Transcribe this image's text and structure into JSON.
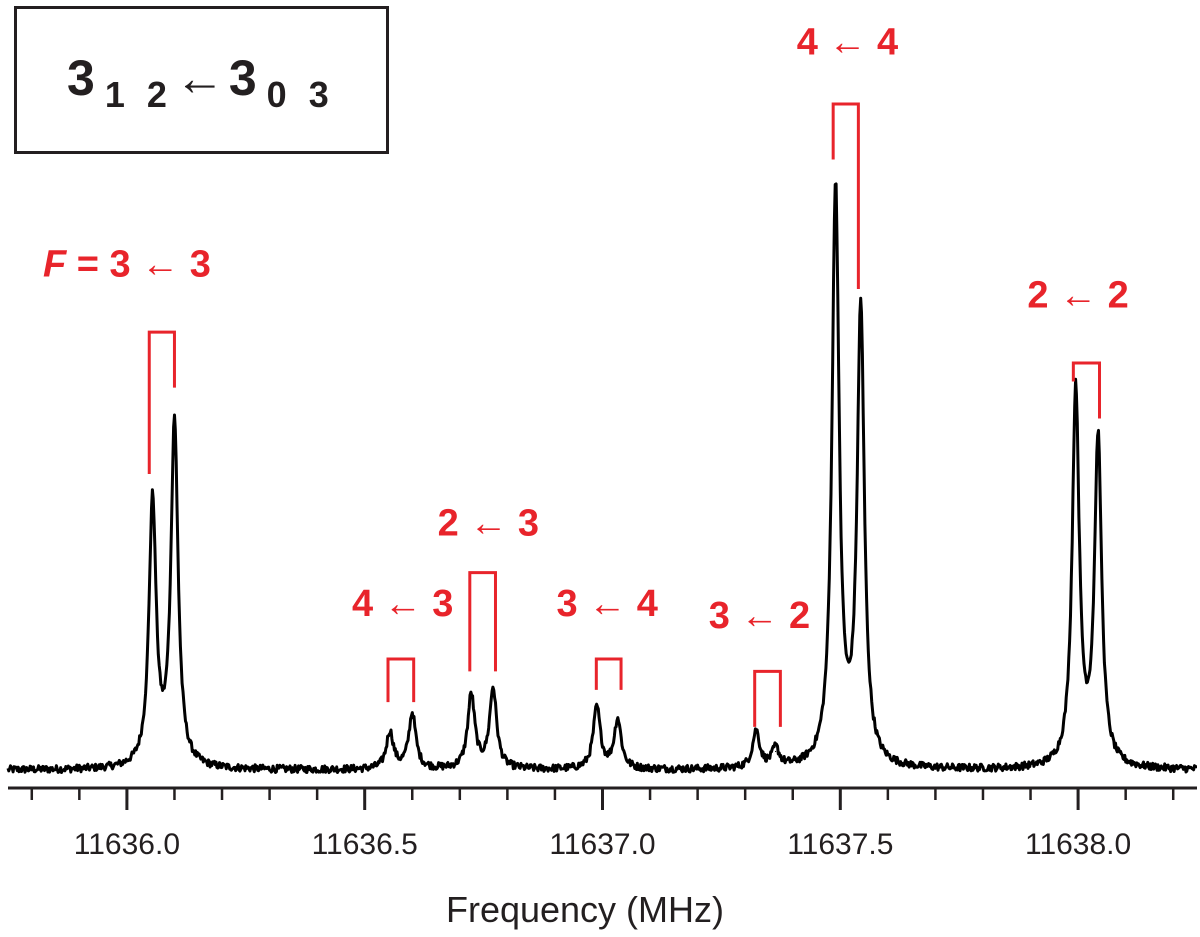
{
  "transition_box": {
    "upper_j": "3",
    "upper_ka_kc": "1 2",
    "arrow": "←",
    "lower_j": "3",
    "lower_ka_kc": "0 3"
  },
  "colors": {
    "trace": "#000000",
    "annotation": "#e8242b",
    "axis": "#231f20",
    "box_border": "#231f20"
  },
  "chart_data": {
    "type": "line",
    "title": "",
    "xlabel": "Frequency (MHz)",
    "ylabel": "",
    "xlim": [
      11635.75,
      11638.25
    ],
    "ylim": [
      0,
      1
    ],
    "x_ticks": [
      11636.0,
      11636.5,
      11637.0,
      11637.5,
      11638.0
    ],
    "x_tick_labels": [
      "11636.0",
      "11636.5",
      "11637.0",
      "11637.5",
      "11638.0"
    ],
    "x_minor_step": 0.1,
    "grid": false,
    "baseline": 0.04,
    "peaks": [
      {
        "x": 11636.054,
        "height": 0.47
      },
      {
        "x": 11636.1,
        "height": 0.6
      },
      {
        "x": 11636.553,
        "height": 0.1
      },
      {
        "x": 11636.6,
        "height": 0.13
      },
      {
        "x": 11636.724,
        "height": 0.16
      },
      {
        "x": 11636.77,
        "height": 0.17
      },
      {
        "x": 11636.988,
        "height": 0.14
      },
      {
        "x": 11637.032,
        "height": 0.12
      },
      {
        "x": 11637.323,
        "height": 0.1
      },
      {
        "x": 11637.364,
        "height": 0.07
      },
      {
        "x": 11637.49,
        "height": 0.98
      },
      {
        "x": 11637.543,
        "height": 0.78
      },
      {
        "x": 11637.995,
        "height": 0.65
      },
      {
        "x": 11638.042,
        "height": 0.57
      }
    ],
    "annotations": [
      {
        "label": "F = 3 ← 3",
        "italic_prefix": "F",
        "text": " = 3 ← 3",
        "x_low": 11636.047,
        "x_high": 11636.1,
        "bracket_top": 0.75,
        "low_leg_end": 0.52,
        "high_leg_end": 0.66,
        "label_x": 11636.0,
        "label_y": 0.84
      },
      {
        "label": "4 ← 3",
        "text": "4 ← 3",
        "x_low": 11636.549,
        "x_high": 11636.603,
        "bracket_top": 0.22,
        "low_leg_end": 0.15,
        "high_leg_end": 0.15,
        "label_x": 11636.58,
        "label_y": 0.29
      },
      {
        "label": "2 ← 3",
        "text": "2 ← 3",
        "x_low": 11636.721,
        "x_high": 11636.775,
        "bracket_top": 0.36,
        "low_leg_end": 0.2,
        "high_leg_end": 0.2,
        "label_x": 11636.76,
        "label_y": 0.42
      },
      {
        "label": "3 ← 4",
        "text": "3 ← 4",
        "x_low": 11636.987,
        "x_high": 11637.039,
        "bracket_top": 0.22,
        "low_leg_end": 0.17,
        "high_leg_end": 0.17,
        "label_x": 11637.01,
        "label_y": 0.29
      },
      {
        "label": "3 ← 2",
        "text": "3 ← 2",
        "x_low": 11637.32,
        "x_high": 11637.374,
        "bracket_top": 0.2,
        "low_leg_end": 0.11,
        "high_leg_end": 0.11,
        "label_x": 11637.33,
        "label_y": 0.27
      },
      {
        "label": "4 ← 4",
        "text": "4 ← 4",
        "x_low": 11637.485,
        "x_high": 11637.538,
        "bracket_top": 1.12,
        "low_leg_end": 1.03,
        "high_leg_end": 0.82,
        "label_x": 11637.515,
        "label_y": 1.2
      },
      {
        "label": "2 ← 2",
        "text": "2 ← 2",
        "x_low": 11637.99,
        "x_high": 11638.045,
        "bracket_top": 0.7,
        "low_leg_end": 0.67,
        "high_leg_end": 0.61,
        "label_x": 11638.0,
        "label_y": 0.79
      }
    ]
  }
}
